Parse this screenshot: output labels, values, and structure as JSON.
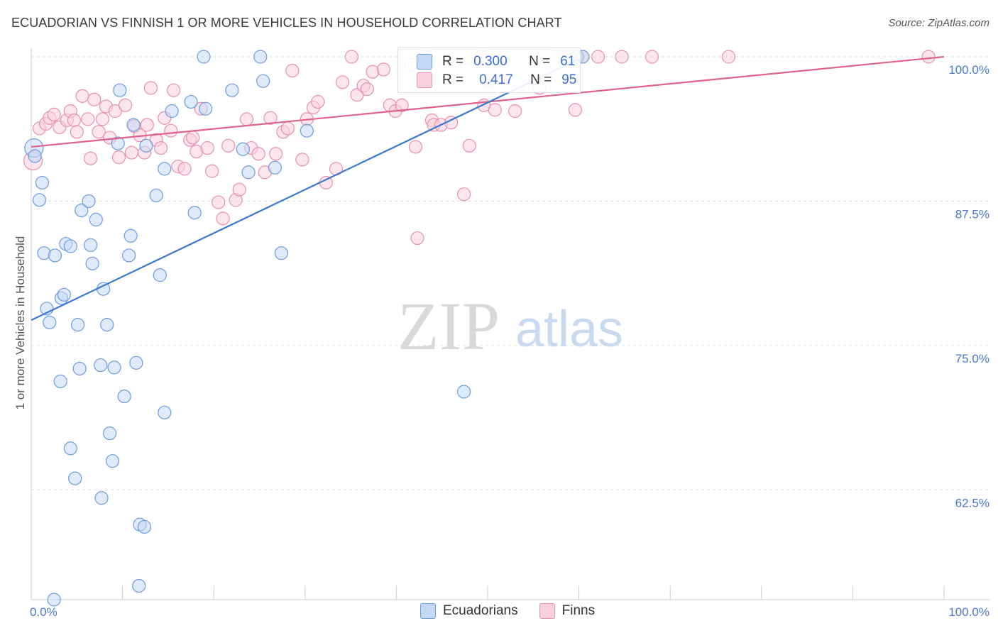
{
  "title": "ECUADORIAN VS FINNISH 1 OR MORE VEHICLES IN HOUSEHOLD CORRELATION CHART",
  "source": "Source: ZipAtlas.com",
  "watermark": {
    "zip": "ZIP",
    "atlas": "atlas"
  },
  "legend": {
    "row1": {
      "r_label": "R =",
      "r_value": "0.300",
      "n_label": "N =",
      "n_value": "61"
    },
    "row2": {
      "r_label": "R =",
      "r_value": "0.417",
      "n_label": "N =",
      "n_value": "95"
    }
  },
  "bottom_legend": {
    "series1": "Ecuadorians",
    "series2": "Finns"
  },
  "colors": {
    "blue_fill": "#c5d8f5",
    "blue_stroke": "#6b9be0",
    "blue_line": "#3a78d1",
    "pink_fill": "#f9d0dd",
    "pink_stroke": "#e88fab",
    "pink_line": "#e0628c",
    "tick": "#4a78c9",
    "grid": "#dddddd"
  },
  "chart_data": {
    "type": "scatter",
    "title": "ECUADORIAN VS FINNISH 1 OR MORE VEHICLES IN HOUSEHOLD CORRELATION CHART",
    "xlabel": "",
    "ylabel": "1 or more Vehicles in Household",
    "xlim": [
      0,
      100
    ],
    "ylim": [
      53,
      100
    ],
    "x_tick_labels": [
      "0.0%",
      "100.0%"
    ],
    "y_ticks": [
      62.5,
      75.0,
      87.5,
      100.0
    ],
    "y_tick_labels": [
      "62.5%",
      "75.0%",
      "87.5%",
      "100.0%"
    ],
    "grid": true,
    "legend_position": "top-center",
    "series": [
      {
        "name": "Ecuadorians",
        "r": 0.3,
        "n": 61,
        "trend": {
          "x": [
            0,
            60
          ],
          "y": [
            77.2,
            99.8
          ]
        },
        "points": [
          [
            0.3,
            92.1
          ],
          [
            0.4,
            91.4
          ],
          [
            1.2,
            89.1
          ],
          [
            0.9,
            87.6
          ],
          [
            1.4,
            83.0
          ],
          [
            2.6,
            82.8
          ],
          [
            3.8,
            83.8
          ],
          [
            4.3,
            83.6
          ],
          [
            5.5,
            86.7
          ],
          [
            6.3,
            87.5
          ],
          [
            7.1,
            85.9
          ],
          [
            6.5,
            83.7
          ],
          [
            6.7,
            82.1
          ],
          [
            7.9,
            79.9
          ],
          [
            3.3,
            79.1
          ],
          [
            3.6,
            79.4
          ],
          [
            1.7,
            78.2
          ],
          [
            2.0,
            77.0
          ],
          [
            5.1,
            76.8
          ],
          [
            8.3,
            76.8
          ],
          [
            5.3,
            73.0
          ],
          [
            7.6,
            73.3
          ],
          [
            9.1,
            73.1
          ],
          [
            11.5,
            73.5
          ],
          [
            3.2,
            71.9
          ],
          [
            10.2,
            70.6
          ],
          [
            14.6,
            69.2
          ],
          [
            8.6,
            67.4
          ],
          [
            4.3,
            66.1
          ],
          [
            8.9,
            65.0
          ],
          [
            4.8,
            63.5
          ],
          [
            7.7,
            61.8
          ],
          [
            11.9,
            59.5
          ],
          [
            12.4,
            59.3
          ],
          [
            11.8,
            54.2
          ],
          [
            2.5,
            53.0
          ],
          [
            9.7,
            97.1
          ],
          [
            12.6,
            92.3
          ],
          [
            9.5,
            92.5
          ],
          [
            15.4,
            95.3
          ],
          [
            11.2,
            94.1
          ],
          [
            14.6,
            90.3
          ],
          [
            17.5,
            96.1
          ],
          [
            19.1,
            95.5
          ],
          [
            18.9,
            100.0
          ],
          [
            22.0,
            97.1
          ],
          [
            23.2,
            92.0
          ],
          [
            23.8,
            90.0
          ],
          [
            25.1,
            100.0
          ],
          [
            25.4,
            97.9
          ],
          [
            26.7,
            90.4
          ],
          [
            27.4,
            83.0
          ],
          [
            30.2,
            93.6
          ],
          [
            10.7,
            82.8
          ],
          [
            10.9,
            84.5
          ],
          [
            13.7,
            88.0
          ],
          [
            14.1,
            81.1
          ],
          [
            17.9,
            86.5
          ],
          [
            47.4,
            71.0
          ],
          [
            59.8,
            100.0
          ],
          [
            60.4,
            100.0
          ]
        ]
      },
      {
        "name": "Finns",
        "r": 0.417,
        "n": 95,
        "trend": {
          "x": [
            0,
            100
          ],
          "y": [
            92.2,
            100.0
          ]
        },
        "points": [
          [
            0.2,
            91.0
          ],
          [
            0.9,
            93.8
          ],
          [
            1.6,
            94.2
          ],
          [
            2.0,
            94.7
          ],
          [
            2.5,
            95.0
          ],
          [
            3.1,
            93.9
          ],
          [
            3.9,
            94.5
          ],
          [
            4.3,
            95.3
          ],
          [
            4.7,
            94.5
          ],
          [
            5.0,
            93.5
          ],
          [
            5.6,
            96.6
          ],
          [
            6.2,
            94.6
          ],
          [
            6.5,
            91.2
          ],
          [
            6.9,
            96.3
          ],
          [
            7.4,
            93.5
          ],
          [
            7.8,
            94.6
          ],
          [
            8.2,
            95.7
          ],
          [
            8.6,
            93.0
          ],
          [
            9.2,
            95.3
          ],
          [
            9.6,
            91.3
          ],
          [
            10.3,
            95.8
          ],
          [
            11.0,
            91.7
          ],
          [
            11.3,
            94.0
          ],
          [
            11.9,
            93.2
          ],
          [
            12.4,
            91.7
          ],
          [
            12.7,
            94.1
          ],
          [
            13.1,
            97.3
          ],
          [
            13.7,
            92.8
          ],
          [
            14.2,
            92.1
          ],
          [
            14.6,
            94.7
          ],
          [
            15.3,
            93.6
          ],
          [
            15.6,
            97.1
          ],
          [
            16.1,
            90.5
          ],
          [
            16.8,
            90.3
          ],
          [
            17.4,
            92.8
          ],
          [
            17.7,
            93.0
          ],
          [
            18.1,
            91.8
          ],
          [
            18.6,
            95.5
          ],
          [
            19.3,
            92.1
          ],
          [
            19.8,
            90.1
          ],
          [
            20.5,
            87.4
          ],
          [
            21.0,
            86.0
          ],
          [
            21.6,
            92.3
          ],
          [
            22.4,
            87.6
          ],
          [
            22.8,
            88.5
          ],
          [
            23.6,
            94.6
          ],
          [
            24.1,
            92.1
          ],
          [
            24.9,
            91.6
          ],
          [
            25.6,
            90.0
          ],
          [
            26.2,
            94.7
          ],
          [
            26.8,
            91.6
          ],
          [
            27.6,
            93.5
          ],
          [
            28.1,
            93.8
          ],
          [
            28.6,
            98.8
          ],
          [
            29.7,
            91.1
          ],
          [
            30.2,
            94.6
          ],
          [
            30.9,
            95.6
          ],
          [
            31.4,
            96.1
          ],
          [
            32.3,
            89.1
          ],
          [
            33.4,
            90.3
          ],
          [
            34.1,
            97.8
          ],
          [
            35.1,
            100.0
          ],
          [
            35.7,
            96.7
          ],
          [
            36.4,
            97.5
          ],
          [
            36.8,
            97.2
          ],
          [
            37.4,
            98.7
          ],
          [
            38.6,
            98.9
          ],
          [
            39.3,
            95.8
          ],
          [
            39.9,
            95.3
          ],
          [
            40.6,
            95.8
          ],
          [
            41.6,
            99.3
          ],
          [
            42.1,
            92.2
          ],
          [
            42.3,
            84.3
          ],
          [
            43.3,
            100.0
          ],
          [
            43.9,
            94.5
          ],
          [
            44.1,
            94.1
          ],
          [
            44.9,
            94.1
          ],
          [
            46.0,
            94.3
          ],
          [
            47.4,
            88.1
          ],
          [
            48.0,
            92.3
          ],
          [
            49.3,
            100.0
          ],
          [
            49.6,
            95.8
          ],
          [
            50.2,
            97.9
          ],
          [
            50.8,
            95.4
          ],
          [
            53.0,
            95.3
          ],
          [
            55.7,
            97.3
          ],
          [
            57.7,
            100.0
          ],
          [
            58.9,
            100.0
          ],
          [
            59.6,
            95.4
          ],
          [
            60.4,
            100.0
          ],
          [
            62.1,
            100.0
          ],
          [
            64.7,
            100.0
          ],
          [
            68.0,
            100.0
          ],
          [
            76.4,
            100.0
          ],
          [
            98.3,
            100.0
          ]
        ]
      }
    ]
  }
}
